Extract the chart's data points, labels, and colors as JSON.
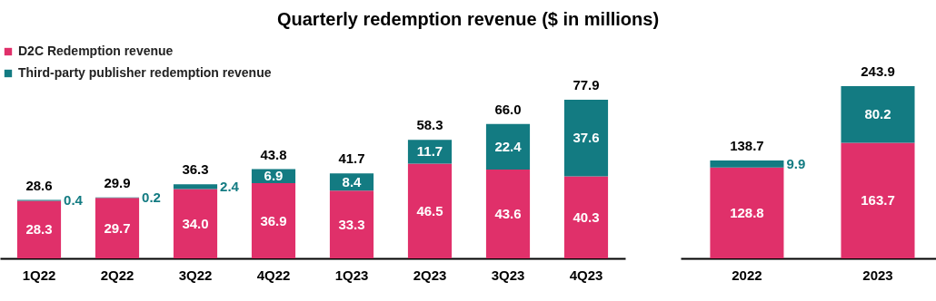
{
  "chart_data": [
    {
      "type": "bar",
      "title": "Quarterly redemption revenue ($ in millions)",
      "categories": [
        "1Q22",
        "2Q22",
        "3Q22",
        "4Q22",
        "1Q23",
        "2Q23",
        "3Q23",
        "4Q23"
      ],
      "series": [
        {
          "name": "D2C Redemption revenue",
          "color": "#e0306a",
          "values": [
            28.3,
            29.7,
            34.0,
            36.9,
            33.3,
            46.5,
            43.6,
            40.3
          ],
          "value_labels": [
            "28.3",
            "29.7",
            "34.0",
            "36.9",
            "33.3",
            "46.5",
            "43.6",
            "40.3"
          ]
        },
        {
          "name": "Third-party publisher redemption revenue",
          "color": "#137b82",
          "values": [
            0.4,
            0.2,
            2.4,
            6.9,
            8.4,
            11.7,
            22.4,
            37.6
          ],
          "value_labels": [
            "0.4",
            "0.2",
            "2.4",
            "6.9",
            "8.4",
            "11.7",
            "22.4",
            "37.6"
          ]
        }
      ],
      "stacked": true,
      "totals": [
        "28.6",
        "29.9",
        "36.3",
        "43.8",
        "41.7",
        "58.3",
        "66.0",
        "77.9"
      ],
      "tick_labels": "x",
      "legend": "top left"
    },
    {
      "type": "bar",
      "categories": [
        "2022",
        "2023"
      ],
      "series": [
        {
          "color": "#e0306a",
          "values": [
            128.8,
            163.7
          ],
          "value_labels": [
            "128.8",
            "163.7"
          ]
        },
        {
          "color": "#137b82",
          "values": [
            9.9,
            80.2
          ],
          "value_labels": [
            "9.9",
            "80.2"
          ]
        }
      ],
      "stacked": true,
      "totals": [
        "138.7",
        "243.9"
      ],
      "tick_labels": "x"
    }
  ]
}
